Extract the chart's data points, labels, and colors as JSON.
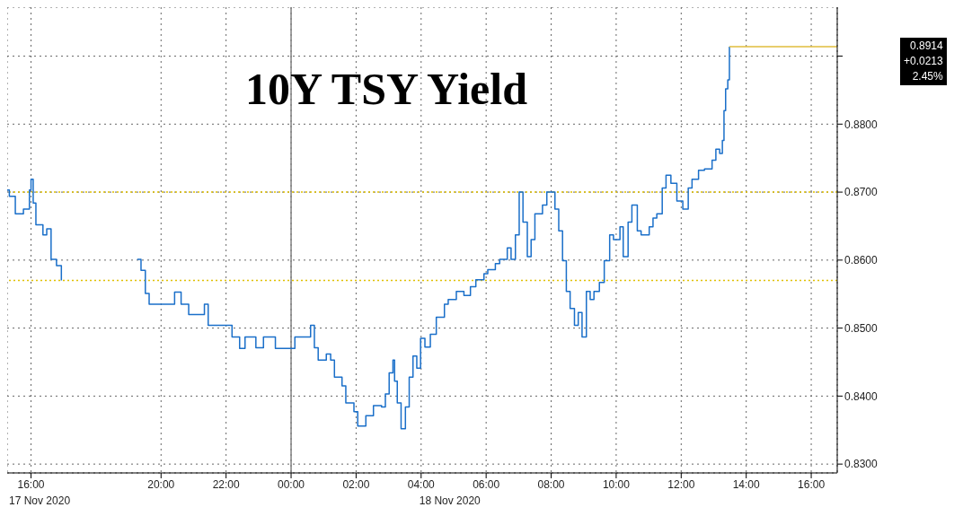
{
  "chart_data": {
    "type": "step",
    "title": "10Y TSY Yield",
    "x": [
      "2020-11-17T15:16",
      "2020-11-17T15:20",
      "2020-11-17T15:31",
      "2020-11-17T15:46",
      "2020-11-17T15:57",
      "2020-11-17T16:00",
      "2020-11-17T16:04",
      "2020-11-17T16:09",
      "2020-11-17T16:22",
      "2020-11-17T16:29",
      "2020-11-17T16:37",
      "2020-11-17T16:47",
      "2020-11-17T16:56",
      "2020-11-17T18:00",
      "2020-11-17T19:16",
      "2020-11-17T19:23",
      "2020-11-17T19:31",
      "2020-11-17T19:38",
      "2020-11-17T19:53",
      "2020-11-17T20:14",
      "2020-11-17T20:25",
      "2020-11-17T20:37",
      "2020-11-17T20:51",
      "2020-11-17T21:13",
      "2020-11-17T21:20",
      "2020-11-17T21:27",
      "2020-11-17T21:46",
      "2020-11-17T22:04",
      "2020-11-17T22:11",
      "2020-11-17T22:25",
      "2020-11-17T22:35",
      "2020-11-17T22:55",
      "2020-11-17T23:09",
      "2020-11-17T23:31",
      "2020-11-17T23:52",
      "2020-11-18T00:07",
      "2020-11-18T00:29",
      "2020-11-18T00:36",
      "2020-11-18T00:43",
      "2020-11-18T00:50",
      "2020-11-18T01:05",
      "2020-11-18T01:13",
      "2020-11-18T01:20",
      "2020-11-18T01:34",
      "2020-11-18T01:41",
      "2020-11-18T01:56",
      "2020-11-18T02:03",
      "2020-11-18T02:18",
      "2020-11-18T02:32",
      "2020-11-18T02:47",
      "2020-11-18T02:54",
      "2020-11-18T03:01",
      "2020-11-18T03:08",
      "2020-11-18T03:11",
      "2020-11-18T03:16",
      "2020-11-18T03:23",
      "2020-11-18T03:31",
      "2020-11-18T03:38",
      "2020-11-18T03:45",
      "2020-11-18T03:52",
      "2020-11-18T03:59",
      "2020-11-18T04:07",
      "2020-11-18T04:17",
      "2020-11-18T04:28",
      "2020-11-18T04:43",
      "2020-11-18T04:50",
      "2020-11-18T05:05",
      "2020-11-18T05:19",
      "2020-11-18T05:31",
      "2020-11-18T05:41",
      "2020-11-18T05:56",
      "2020-11-18T06:03",
      "2020-11-18T06:17",
      "2020-11-18T06:25",
      "2020-11-18T06:39",
      "2020-11-18T06:46",
      "2020-11-18T06:54",
      "2020-11-18T07:01",
      "2020-11-18T07:08",
      "2020-11-18T07:16",
      "2020-11-18T07:23",
      "2020-11-18T07:30",
      "2020-11-18T07:44",
      "2020-11-18T07:52",
      "2020-11-18T07:59",
      "2020-11-18T08:07",
      "2020-11-18T08:14",
      "2020-11-18T08:21",
      "2020-11-18T08:28",
      "2020-11-18T08:35",
      "2020-11-18T08:43",
      "2020-11-18T08:50",
      "2020-11-18T08:57",
      "2020-11-18T09:05",
      "2020-11-18T09:12",
      "2020-11-18T09:19",
      "2020-11-18T09:29",
      "2020-11-18T09:38",
      "2020-11-18T09:48",
      "2020-11-18T09:55",
      "2020-11-18T10:07",
      "2020-11-18T10:13",
      "2020-11-18T10:22",
      "2020-11-18T10:29",
      "2020-11-18T10:39",
      "2020-11-18T10:46",
      "2020-11-18T11:01",
      "2020-11-18T11:08",
      "2020-11-18T11:15",
      "2020-11-18T11:25",
      "2020-11-18T11:32",
      "2020-11-18T11:41",
      "2020-11-18T11:52",
      "2020-11-18T12:03",
      "2020-11-18T12:13",
      "2020-11-18T12:20",
      "2020-11-18T12:32",
      "2020-11-18T12:43",
      "2020-11-18T12:57",
      "2020-11-18T13:04",
      "2020-11-18T13:11",
      "2020-11-18T13:16",
      "2020-11-18T13:19",
      "2020-11-18T13:22",
      "2020-11-18T13:26",
      "2020-11-18T13:29"
    ],
    "series": [
      {
        "color": "#1a6fc9",
        "values": [
          0.8703,
          0.8694,
          0.8668,
          0.8675,
          0.8703,
          0.8719,
          0.8684,
          0.8652,
          0.8637,
          0.8646,
          0.8601,
          0.8592,
          0.857,
          null,
          0.8601,
          0.8585,
          0.8551,
          0.8535,
          0.8535,
          0.8535,
          0.8553,
          0.8535,
          0.852,
          0.852,
          0.8535,
          0.8504,
          0.8504,
          0.8504,
          0.8487,
          0.847,
          0.8487,
          0.8471,
          0.8487,
          0.847,
          0.847,
          0.8487,
          0.8487,
          0.8504,
          0.8471,
          0.8453,
          0.8462,
          0.8453,
          0.8428,
          0.8415,
          0.839,
          0.8377,
          0.8356,
          0.8371,
          0.8386,
          0.8384,
          0.8403,
          0.8434,
          0.8453,
          0.8422,
          0.839,
          0.8352,
          0.8384,
          0.8428,
          0.8459,
          0.8441,
          0.8485,
          0.8472,
          0.8491,
          0.8516,
          0.8535,
          0.8542,
          0.8554,
          0.8548,
          0.8561,
          0.8571,
          0.858,
          0.8586,
          0.8595,
          0.8601,
          0.8618,
          0.8601,
          0.8637,
          0.87,
          0.8656,
          0.8605,
          0.863,
          0.8668,
          0.8681,
          0.87,
          0.87,
          0.8675,
          0.8643,
          0.8599,
          0.8554,
          0.8529,
          0.8504,
          0.8523,
          0.8487,
          0.8554,
          0.8542,
          0.8554,
          0.8567,
          0.8599,
          0.8637,
          0.863,
          0.8649,
          0.8605,
          0.8656,
          0.8681,
          0.8643,
          0.8637,
          0.8649,
          0.8662,
          0.8668,
          0.8706,
          0.8725,
          0.8713,
          0.8687,
          0.8675,
          0.8706,
          0.8719,
          0.8732,
          0.8734,
          0.8747,
          0.8763,
          0.8757,
          0.8776,
          0.882,
          0.8852,
          0.8865,
          0.8914
        ]
      },
      {
        "color": "#e0bc3c",
        "x": [
          "2020-11-18T13:29",
          "2020-11-18T16:48"
        ],
        "values": [
          0.8914,
          0.8914
        ]
      }
    ],
    "xlim": [
      "2020-11-17T15:16",
      "2020-11-18T16:48"
    ],
    "xticks": [
      {
        "value": "2020-11-17T16:00",
        "label": "16:00"
      },
      {
        "value": "2020-11-17T20:00",
        "label": "20:00"
      },
      {
        "value": "2020-11-17T22:00",
        "label": "22:00"
      },
      {
        "value": "2020-11-18T00:00",
        "label": "00:00"
      },
      {
        "value": "2020-11-18T02:00",
        "label": "02:00"
      },
      {
        "value": "2020-11-18T04:00",
        "label": "04:00"
      },
      {
        "value": "2020-11-18T06:00",
        "label": "06:00"
      },
      {
        "value": "2020-11-18T08:00",
        "label": "08:00"
      },
      {
        "value": "2020-11-18T10:00",
        "label": "10:00"
      },
      {
        "value": "2020-11-18T12:00",
        "label": "12:00"
      },
      {
        "value": "2020-11-18T14:00",
        "label": "14:00"
      },
      {
        "value": "2020-11-18T16:00",
        "label": "16:00"
      }
    ],
    "ylim": [
      0.8287,
      0.8972
    ],
    "yticks": [
      {
        "value": 0.83,
        "label": "0.8300"
      },
      {
        "value": 0.84,
        "label": "0.8400"
      },
      {
        "value": 0.85,
        "label": "0.8500"
      },
      {
        "value": 0.86,
        "label": "0.8600"
      },
      {
        "value": 0.87,
        "label": "0.8700"
      },
      {
        "value": 0.88,
        "label": "0.8800"
      },
      {
        "value": 0.89,
        "label": null
      }
    ],
    "ref_lines": [
      {
        "axis": "y",
        "value": 0.87,
        "color": "#e0c000",
        "line_style": "dotted"
      },
      {
        "axis": "y",
        "value": 0.857,
        "color": "#e0c000",
        "line_style": "dotted"
      },
      {
        "axis": "x",
        "value": "2020-11-18T00:00",
        "color": "#808080",
        "line_style": "solid"
      }
    ],
    "annotations": [
      "0.8914",
      "+0.0213",
      "2.45%",
      "17 Nov 2020",
      "18 Nov 2020"
    ],
    "grid": true,
    "marker": "none",
    "line_style": "solid"
  }
}
